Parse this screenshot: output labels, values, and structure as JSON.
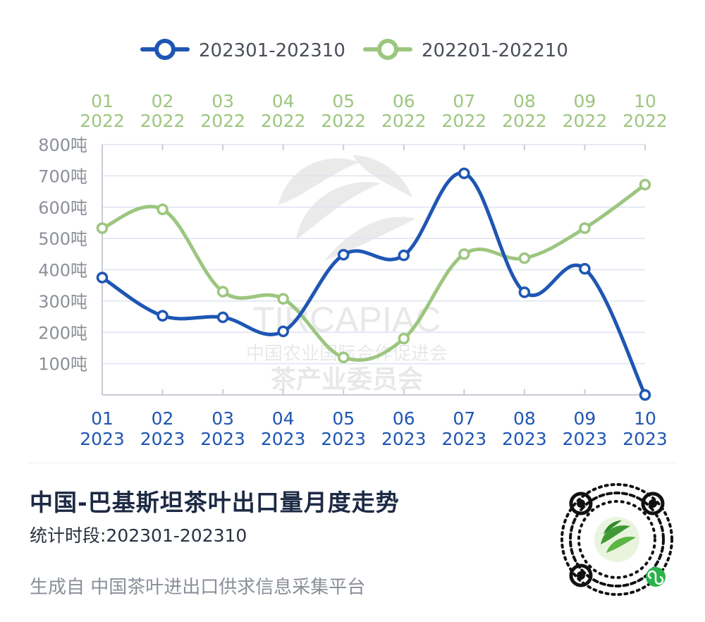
{
  "chart_data": {
    "type": "line",
    "categories_bottom": [
      [
        "01",
        "2023"
      ],
      [
        "02",
        "2023"
      ],
      [
        "03",
        "2023"
      ],
      [
        "04",
        "2023"
      ],
      [
        "05",
        "2023"
      ],
      [
        "06",
        "2023"
      ],
      [
        "07",
        "2023"
      ],
      [
        "08",
        "2023"
      ],
      [
        "09",
        "2023"
      ],
      [
        "10",
        "2023"
      ]
    ],
    "categories_top": [
      [
        "01",
        "2022"
      ],
      [
        "02",
        "2022"
      ],
      [
        "03",
        "2022"
      ],
      [
        "04",
        "2022"
      ],
      [
        "05",
        "2022"
      ],
      [
        "06",
        "2022"
      ],
      [
        "07",
        "2022"
      ],
      [
        "08",
        "2022"
      ],
      [
        "09",
        "2022"
      ],
      [
        "10",
        "2022"
      ]
    ],
    "series": [
      {
        "name": "202301-202310",
        "color": "#1f56b3",
        "values": [
          375,
          253,
          248,
          203,
          448,
          446,
          708,
          328,
          403,
          0
        ]
      },
      {
        "name": "202201-202210",
        "color": "#9cc67f",
        "values": [
          533,
          593,
          330,
          307,
          120,
          180,
          450,
          437,
          533,
          672
        ]
      }
    ],
    "yticks": [
      "800吨",
      "700吨",
      "600吨",
      "500吨",
      "400吨",
      "300吨",
      "200吨",
      "100吨"
    ],
    "ylim": [
      0,
      800
    ],
    "grid": true,
    "legend": "top-center"
  },
  "watermark": {
    "line1": "TIRCAPIAC",
    "line2": "中国农业国际合作促进会",
    "line3": "茶产业委员会"
  },
  "footer": {
    "title": "中国-巴基斯坦茶叶出口量月度走势",
    "period": "统计时段:202301-202310",
    "source": "生成自  中国茶叶进出口供求信息采集平台"
  },
  "colors": {
    "grid": "#dde3f0",
    "axis": "#c8ccd6",
    "ytick": "#8b8f98"
  }
}
